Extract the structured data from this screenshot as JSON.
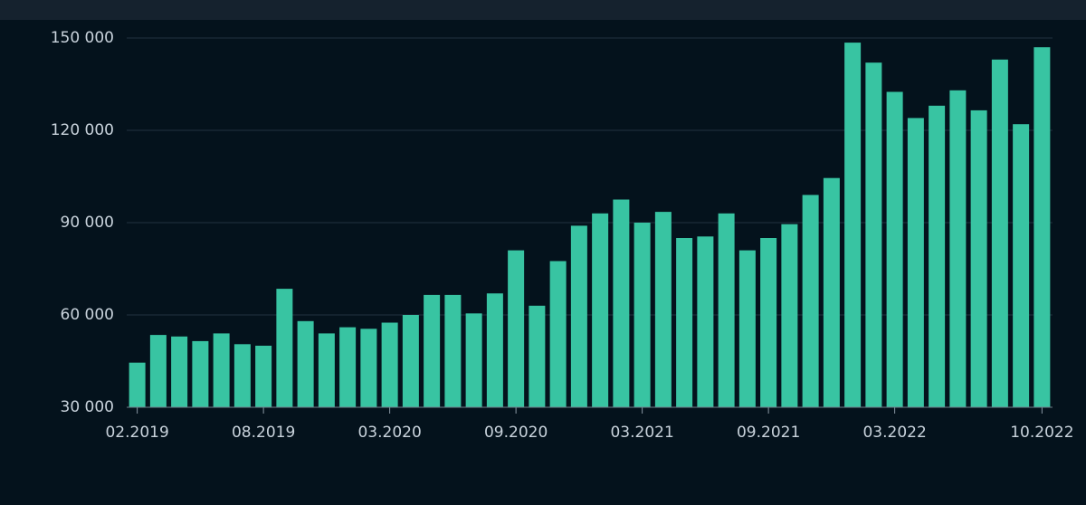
{
  "chart_data": {
    "type": "bar",
    "categories": [
      "02.2019",
      null,
      null,
      null,
      null,
      null,
      "08.2019",
      null,
      null,
      null,
      null,
      null,
      "03.2020",
      null,
      null,
      null,
      null,
      null,
      "09.2020",
      null,
      null,
      null,
      null,
      null,
      "03.2021",
      null,
      null,
      null,
      null,
      null,
      "09.2021",
      null,
      null,
      null,
      null,
      null,
      "03.2022",
      null,
      null,
      null,
      null,
      null,
      null,
      "10.2022"
    ],
    "values": [
      44500,
      53500,
      53000,
      51500,
      54000,
      50500,
      50000,
      68500,
      58000,
      54000,
      56000,
      55500,
      57500,
      60000,
      66500,
      66500,
      60500,
      67000,
      81000,
      63000,
      77500,
      89000,
      93000,
      97500,
      90000,
      93500,
      85000,
      85500,
      93000,
      81000,
      85000,
      89500,
      99000,
      104500,
      148500,
      142000,
      132500,
      124000,
      128000,
      133000,
      126500,
      143000,
      122000,
      147000
    ],
    "color": "#38c4a2",
    "ylim": [
      30000,
      150000
    ],
    "yticks": [
      {
        "value": 30000,
        "label": "30 000"
      },
      {
        "value": 60000,
        "label": "60 000"
      },
      {
        "value": 90000,
        "label": "90 000"
      },
      {
        "value": 120000,
        "label": "120 000"
      },
      {
        "value": 150000,
        "label": "150 000"
      }
    ],
    "grid": true
  }
}
